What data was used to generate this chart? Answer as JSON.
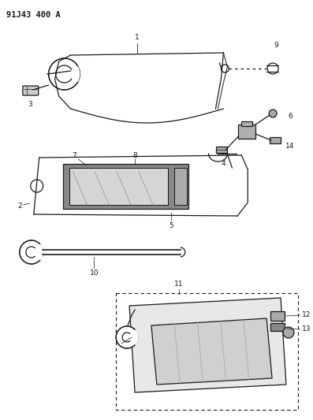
{
  "title_text": "91J43 400 A",
  "bg_color": "#ffffff",
  "line_color": "#1a1a1a",
  "title_fontsize": 7.5,
  "label_fontsize": 6.5,
  "fig_width": 3.97,
  "fig_height": 5.33,
  "dpi": 100
}
